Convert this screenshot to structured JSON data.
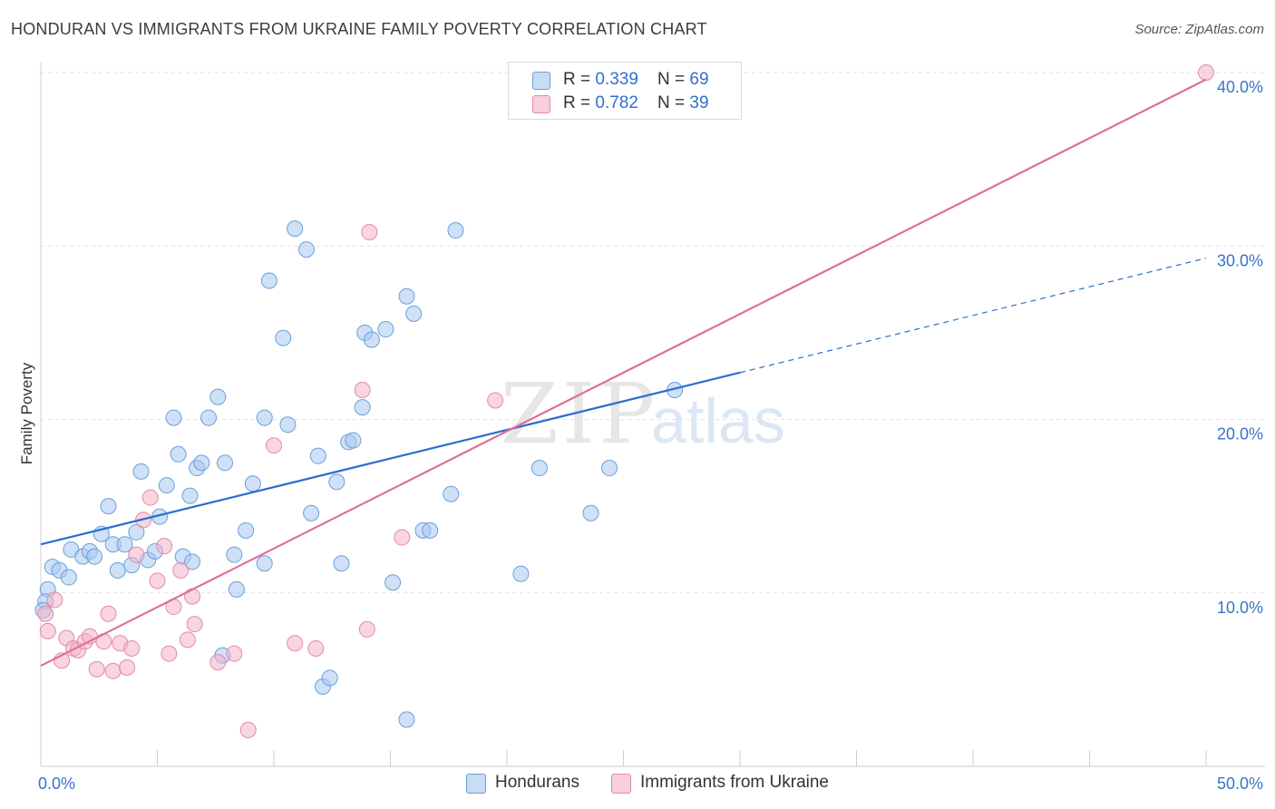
{
  "header": {
    "title": "HONDURAN VS IMMIGRANTS FROM UKRAINE FAMILY POVERTY CORRELATION CHART",
    "source": "Source: ZipAtlas.com"
  },
  "legend": {
    "rows": [
      {
        "r_label": "R = ",
        "r_value": "0.339",
        "n_label": "N = ",
        "n_value": "69",
        "color": "#a8c8f0"
      },
      {
        "r_label": "R = ",
        "r_value": "0.782",
        "n_label": "N = ",
        "n_value": "39",
        "color": "#f4b3c8"
      }
    ]
  },
  "watermark": {
    "zip": "ZIP",
    "atlas": "atlas"
  },
  "chart_data": {
    "type": "scatter",
    "ylabel": "Family Poverty",
    "xlim": [
      0,
      50
    ],
    "ylim": [
      0,
      40
    ],
    "x_tick_labels": [
      {
        "value": 0,
        "label": "0.0%"
      },
      {
        "value": 50,
        "label": "50.0%"
      }
    ],
    "y_tick_labels": [
      {
        "value": 10,
        "label": "10.0%"
      },
      {
        "value": 20,
        "label": "20.0%"
      },
      {
        "value": 30,
        "label": "30.0%"
      },
      {
        "value": 40,
        "label": "40.0%"
      }
    ],
    "grid": true,
    "legend_position": "top-center",
    "series": [
      {
        "name": "Hondurans",
        "color": "#a8c8f0",
        "stroke": "#6b9fd8",
        "trend_color": "#2a6fcf",
        "trend": {
          "x0": 0,
          "y0": 12.8,
          "x1": 30,
          "y1": 22.7,
          "dash_to_x": 50,
          "dash_to_y": 29.3
        },
        "points": [
          [
            0.3,
            10.2
          ],
          [
            0.2,
            9.5
          ],
          [
            0.5,
            11.5
          ],
          [
            0.8,
            11.3
          ],
          [
            1.2,
            10.9
          ],
          [
            1.3,
            12.5
          ],
          [
            1.8,
            12.1
          ],
          [
            2.1,
            12.4
          ],
          [
            2.3,
            12.1
          ],
          [
            2.6,
            13.4
          ],
          [
            2.9,
            15.0
          ],
          [
            3.1,
            12.8
          ],
          [
            3.3,
            11.3
          ],
          [
            3.6,
            12.8
          ],
          [
            3.9,
            11.6
          ],
          [
            4.1,
            13.5
          ],
          [
            4.3,
            17.0
          ],
          [
            4.6,
            11.9
          ],
          [
            4.9,
            12.4
          ],
          [
            5.1,
            14.4
          ],
          [
            5.4,
            16.2
          ],
          [
            5.7,
            20.1
          ],
          [
            5.9,
            18.0
          ],
          [
            6.1,
            12.1
          ],
          [
            6.4,
            15.6
          ],
          [
            6.5,
            11.8
          ],
          [
            6.7,
            17.2
          ],
          [
            6.9,
            17.5
          ],
          [
            7.2,
            20.1
          ],
          [
            7.6,
            21.3
          ],
          [
            7.8,
            6.4
          ],
          [
            7.9,
            17.5
          ],
          [
            8.3,
            12.2
          ],
          [
            8.4,
            10.2
          ],
          [
            8.8,
            13.6
          ],
          [
            9.1,
            16.3
          ],
          [
            9.6,
            11.7
          ],
          [
            9.6,
            20.1
          ],
          [
            9.8,
            28.0
          ],
          [
            10.4,
            24.7
          ],
          [
            10.6,
            19.7
          ],
          [
            10.9,
            31.0
          ],
          [
            11.4,
            29.8
          ],
          [
            11.6,
            14.6
          ],
          [
            11.9,
            17.9
          ],
          [
            12.1,
            4.6
          ],
          [
            12.4,
            5.1
          ],
          [
            12.7,
            16.4
          ],
          [
            12.9,
            11.7
          ],
          [
            13.2,
            18.7
          ],
          [
            13.4,
            18.8
          ],
          [
            13.8,
            20.7
          ],
          [
            13.9,
            25.0
          ],
          [
            14.2,
            24.6
          ],
          [
            14.8,
            25.2
          ],
          [
            15.1,
            10.6
          ],
          [
            15.7,
            27.1
          ],
          [
            15.7,
            2.7
          ],
          [
            16.0,
            26.1
          ],
          [
            16.4,
            13.6
          ],
          [
            16.7,
            13.6
          ],
          [
            17.6,
            15.7
          ],
          [
            17.8,
            30.9
          ],
          [
            20.6,
            11.1
          ],
          [
            21.4,
            17.2
          ],
          [
            23.6,
            14.6
          ],
          [
            24.4,
            17.2
          ],
          [
            27.2,
            21.7
          ],
          [
            0.1,
            9.0
          ]
        ]
      },
      {
        "name": "Immigrants from Ukraine",
        "color": "#f4b3c8",
        "stroke": "#e38aa8",
        "trend_color": "#e06f97",
        "trend": {
          "x0": 0,
          "y0": 5.8,
          "x1": 50,
          "y1": 39.6
        },
        "points": [
          [
            0.2,
            8.8
          ],
          [
            0.3,
            7.8
          ],
          [
            0.6,
            9.6
          ],
          [
            0.9,
            6.1
          ],
          [
            1.1,
            7.4
          ],
          [
            1.4,
            6.8
          ],
          [
            1.6,
            6.7
          ],
          [
            1.9,
            7.2
          ],
          [
            2.1,
            7.5
          ],
          [
            2.4,
            5.6
          ],
          [
            2.7,
            7.2
          ],
          [
            2.9,
            8.8
          ],
          [
            3.1,
            5.5
          ],
          [
            3.4,
            7.1
          ],
          [
            3.7,
            5.7
          ],
          [
            3.9,
            6.8
          ],
          [
            4.1,
            12.2
          ],
          [
            4.4,
            14.2
          ],
          [
            4.7,
            15.5
          ],
          [
            5.0,
            10.7
          ],
          [
            5.3,
            12.7
          ],
          [
            5.5,
            6.5
          ],
          [
            5.7,
            9.2
          ],
          [
            6.0,
            11.3
          ],
          [
            6.3,
            7.3
          ],
          [
            6.5,
            9.8
          ],
          [
            6.6,
            8.2
          ],
          [
            7.6,
            6.0
          ],
          [
            8.3,
            6.5
          ],
          [
            8.9,
            2.1
          ],
          [
            10.0,
            18.5
          ],
          [
            10.9,
            7.1
          ],
          [
            11.8,
            6.8
          ],
          [
            13.8,
            21.7
          ],
          [
            14.0,
            7.9
          ],
          [
            14.1,
            30.8
          ],
          [
            15.5,
            13.2
          ],
          [
            19.5,
            21.1
          ],
          [
            50.0,
            40.0
          ]
        ]
      }
    ]
  }
}
